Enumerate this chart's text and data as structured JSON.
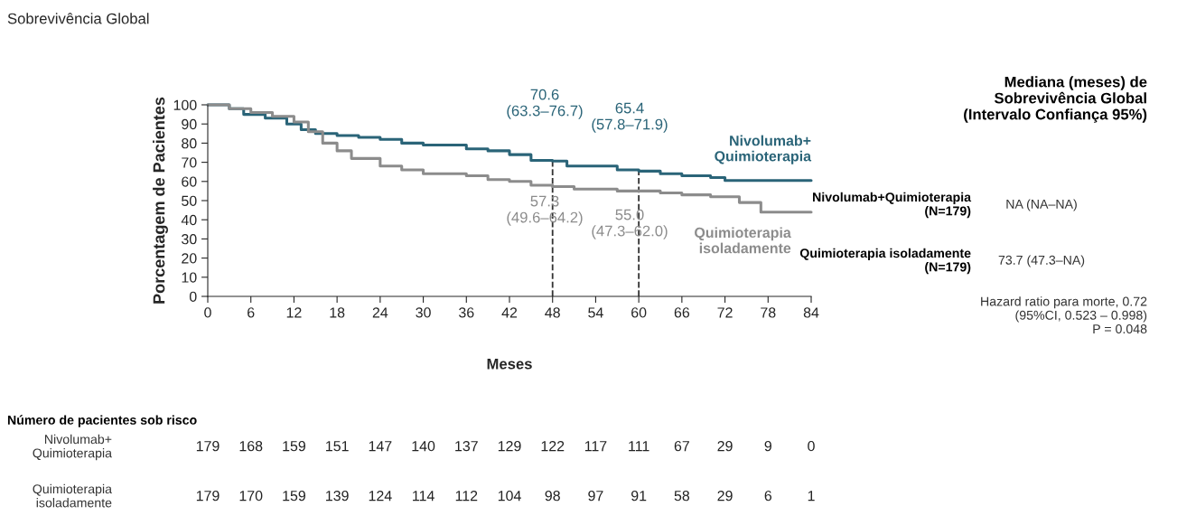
{
  "chart_data": {
    "type": "step",
    "title": "Sobrevivência Global",
    "xlabel": "Meses",
    "ylabel": "Porcentagem de Pacientes",
    "xlim": [
      0,
      84
    ],
    "xticks": [
      0,
      6,
      12,
      18,
      24,
      30,
      36,
      42,
      48,
      54,
      60,
      66,
      72,
      78,
      84
    ],
    "ylim": [
      0,
      100
    ],
    "yticks": [
      0,
      10,
      20,
      30,
      40,
      50,
      60,
      70,
      80,
      90,
      100
    ],
    "grid": false,
    "legend": false,
    "marker": "none",
    "line_style": "solid",
    "series": [
      {
        "name": "Nivolumab+\nQuimioterapia",
        "color": "#2a6478",
        "x": [
          0,
          2,
          3,
          5,
          8,
          11,
          13,
          15,
          18,
          21,
          24,
          27,
          30,
          33,
          36,
          39,
          42,
          45,
          48,
          50,
          54,
          57,
          60,
          63,
          66,
          70,
          72,
          84
        ],
        "values": [
          100,
          100,
          98,
          95,
          93,
          90,
          87,
          85,
          84,
          83,
          82,
          80,
          79,
          79,
          77,
          76,
          74,
          71,
          70.6,
          68,
          68,
          66,
          65.4,
          64,
          63,
          62,
          60.5,
          60.5
        ]
      },
      {
        "name": "Quimioterapia\nisoladamente",
        "color": "#8c8c8c",
        "x": [
          0,
          3,
          6,
          9,
          12,
          14,
          16,
          18,
          20,
          24,
          27,
          30,
          36,
          39,
          42,
          45,
          48,
          51,
          54,
          57,
          60,
          63,
          66,
          70,
          73,
          74,
          76,
          77,
          84
        ],
        "values": [
          100,
          98,
          96,
          94,
          91,
          86,
          80,
          76,
          72,
          68,
          66,
          64,
          63,
          61,
          60,
          58,
          57.3,
          56,
          56,
          55,
          55,
          54,
          53,
          52,
          52,
          49,
          49,
          44,
          44
        ]
      }
    ],
    "ref_lines": [
      {
        "axis": "x",
        "value": 48,
        "color": "#333333",
        "line_style": "dashed"
      },
      {
        "axis": "x",
        "value": 60,
        "color": "#333333",
        "line_style": "dashed"
      }
    ],
    "annotations": [
      "70.6\n(63.3–76.7)",
      "65.4\n(57.8–71.9)",
      "57.3\n(49.6–64.2)",
      "55.0\n(47.3–62.0)",
      "Mediana (meses) de\nSobrevivência Global\n(Intervalo Confiança 95%)",
      "Nivolumab+Quimioterapia\n(N=179)",
      "NA (NA–NA)",
      "Quimioterapia isoladamente\n(N=179)",
      "73.7 (47.3–NA)",
      "Hazard ratio para morte, 0.72\n(95%CI, 0.523 – 0.998)\nP = 0.048",
      "Número de pacientes sob risco",
      "Nivolumab+\nQuimioterapia",
      "179 168 159 151 147 140 137 129 122 117 111 67 29 9 0",
      "Quimioterapia\nisoladamente",
      "179 170 159 139 124 114 112 104 98 97 91 58 29 6 1"
    ]
  }
}
